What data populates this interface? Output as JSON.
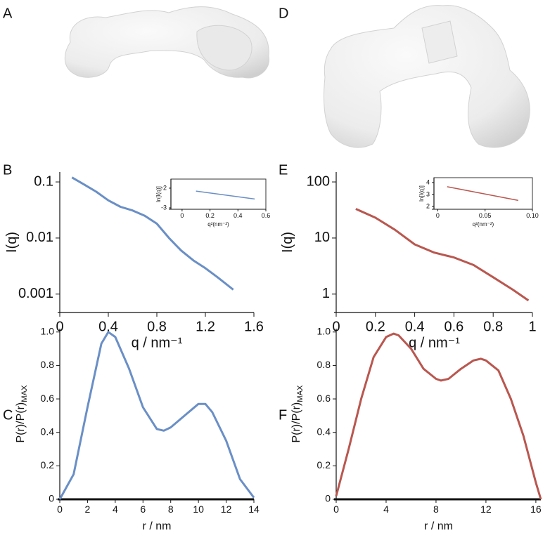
{
  "panel_labels": [
    "A",
    "B",
    "C",
    "D",
    "E",
    "F"
  ],
  "chart_data": [
    {
      "type": "line",
      "log_y": true,
      "y_label": "I(q)",
      "x_label": "q / nm⁻¹",
      "x": [
        0.1,
        0.2,
        0.3,
        0.4,
        0.5,
        0.6,
        0.7,
        0.8,
        0.9,
        1.0,
        1.1,
        1.2,
        1.3,
        1.43
      ],
      "series": [
        {
          "color": "#6a8fc6",
          "values": [
            0.12,
            0.09,
            0.067,
            0.047,
            0.036,
            0.031,
            0.025,
            0.018,
            0.01,
            0.006,
            0.004,
            0.0029,
            0.002,
            0.0012
          ]
        }
      ],
      "xlim": [
        0,
        1.6
      ],
      "xticks": [
        0,
        0.4,
        0.8,
        1.2,
        1.6
      ],
      "ylim": [
        0.00047,
        0.15
      ],
      "yticks": [
        0.001,
        0.01,
        0.1
      ]
    },
    {
      "type": "line",
      "y_label": "ln[I(q)]",
      "x_label": "q²(nm⁻²)",
      "x": [
        0.1,
        0.52
      ],
      "series": [
        {
          "color": "#6a8fc6",
          "values": [
            -2.15,
            -2.55
          ]
        }
      ],
      "xlim": [
        -0.08,
        0.6
      ],
      "xticks": [
        0,
        0.2,
        0.4,
        0.6
      ],
      "ylim": [
        -3.07,
        -1.54
      ],
      "yticks": [
        -2,
        -3
      ]
    },
    {
      "type": "line",
      "y_label": "P(r)/P(r)",
      "y_label_sub": "MAX",
      "x_label": "r / nm",
      "x": [
        0,
        1,
        2,
        3,
        3.5,
        4,
        5,
        6,
        7,
        7.5,
        8,
        9,
        10,
        10.5,
        11,
        12,
        13,
        14
      ],
      "series": [
        {
          "color": "#6a8fc6",
          "values": [
            0,
            0.15,
            0.55,
            0.93,
            1.0,
            0.97,
            0.78,
            0.55,
            0.42,
            0.41,
            0.43,
            0.5,
            0.57,
            0.57,
            0.52,
            0.35,
            0.12,
            0.01
          ]
        }
      ],
      "xlim": [
        0,
        14
      ],
      "xticks": [
        0,
        2,
        4,
        6,
        8,
        10,
        12,
        14
      ],
      "ylim": [
        0,
        1.02
      ],
      "yticks": [
        0,
        0.2,
        0.4,
        0.6,
        0.8,
        {
          "value": 1,
          "label": "1.0"
        }
      ]
    },
    {
      "type": "line",
      "log_y": true,
      "y_label": "I(q)",
      "x_label": "q / nm⁻¹",
      "x": [
        0.1,
        0.2,
        0.3,
        0.4,
        0.5,
        0.6,
        0.7,
        0.8,
        0.9,
        0.98
      ],
      "series": [
        {
          "color": "#b9574f",
          "values": [
            33,
            23,
            14,
            7.7,
            5.5,
            4.5,
            3.3,
            2.0,
            1.2,
            0.77
          ]
        }
      ],
      "xlim": [
        0,
        1
      ],
      "xticks": [
        0,
        0.2,
        0.4,
        0.6,
        0.8,
        1
      ],
      "ylim": [
        0.47,
        150
      ],
      "yticks": [
        1,
        10,
        100
      ]
    },
    {
      "type": "line",
      "y_label": "ln[I(q)]",
      "x_label": "q²(nm⁻²)",
      "x": [
        0.01,
        0.085
      ],
      "series": [
        {
          "color": "#b9574f",
          "values": [
            3.65,
            2.5
          ]
        }
      ],
      "xlim": [
        -0.004,
        0.1
      ],
      "xticks": [
        0,
        0.05,
        {
          "value": 0.1,
          "label": "0.10"
        }
      ],
      "ylim": [
        1.76,
        4.41
      ],
      "yticks": [
        2,
        3,
        4
      ]
    },
    {
      "type": "line",
      "y_label": "P(r)/P(r)",
      "y_label_sub": "MAX",
      "x_label": "r / nm",
      "x": [
        0,
        1,
        2,
        3,
        4,
        4.6,
        5,
        6,
        7,
        8,
        8.4,
        9,
        10,
        11,
        11.6,
        12,
        13,
        14,
        15,
        16,
        16.4
      ],
      "series": [
        {
          "color": "#b9574f",
          "values": [
            0.02,
            0.3,
            0.6,
            0.85,
            0.97,
            0.99,
            0.98,
            0.9,
            0.78,
            0.72,
            0.71,
            0.72,
            0.78,
            0.83,
            0.84,
            0.83,
            0.77,
            0.6,
            0.38,
            0.1,
            0
          ]
        }
      ],
      "xlim": [
        0,
        16.4
      ],
      "xticks": [
        0,
        4,
        8,
        12,
        16
      ],
      "ylim": [
        0,
        1.02
      ],
      "yticks": [
        0,
        0.2,
        0.4,
        0.6,
        0.8,
        {
          "value": 1,
          "label": "1.0"
        }
      ]
    }
  ]
}
